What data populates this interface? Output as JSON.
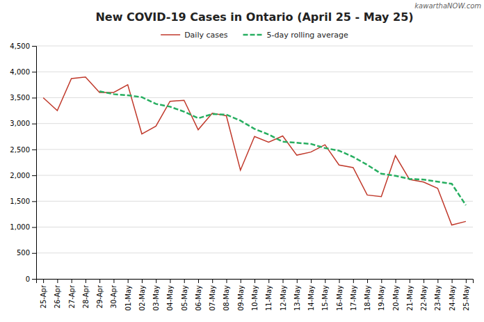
{
  "chart_data": {
    "type": "line",
    "title": "New COVID-19 Cases in Ontario (April 25 - May 25)",
    "annotations": [
      "kawarthaNOW.com"
    ],
    "categories": [
      "25-Apr",
      "26-Apr",
      "27-Apr",
      "28-Apr",
      "29-Apr",
      "30-Apr",
      "01-May",
      "02-May",
      "03-May",
      "04-May",
      "05-May",
      "06-May",
      "07-May",
      "08-May",
      "09-May",
      "10-May",
      "11-May",
      "12-May",
      "13-May",
      "14-May",
      "15-May",
      "16-May",
      "17-May",
      "18-May",
      "19-May",
      "20-May",
      "21-May",
      "22-May",
      "23-May",
      "24-May",
      "25-May"
    ],
    "series": [
      {
        "name": "Daily cases",
        "color": "#c0392b",
        "line_style": "solid",
        "values": [
          3500,
          3250,
          3870,
          3900,
          3600,
          3600,
          3750,
          2800,
          2950,
          3430,
          3450,
          2880,
          3200,
          3150,
          2100,
          2750,
          2640,
          2760,
          2390,
          2450,
          2590,
          2200,
          2150,
          1620,
          1590,
          2380,
          1920,
          1870,
          1750,
          1040,
          1110
        ]
      },
      {
        "name": "5-day rolling average",
        "color": "#27ae60",
        "line_style": "dashed",
        "values": [
          null,
          null,
          null,
          null,
          3624,
          3568,
          3546,
          3510,
          3380,
          3326,
          3230,
          3102,
          3183,
          3172,
          3057,
          2897,
          2789,
          2649,
          2628,
          2607,
          2527,
          2477,
          2357,
          2203,
          2031,
          1992,
          1932,
          1917,
          1877,
          1837,
          1424
        ]
      }
    ],
    "ylim": [
      0,
      4500
    ],
    "yticks": [
      0,
      500,
      {
        "value": 1000,
        "label": "1,000"
      },
      {
        "value": 1500,
        "label": "1,500"
      },
      {
        "value": 2000,
        "label": "2,000"
      },
      {
        "value": 2500,
        "label": "2,500"
      },
      {
        "value": 3000,
        "label": "3,000"
      },
      {
        "value": 3500,
        "label": "3,500"
      },
      {
        "value": 4000,
        "label": "4,000"
      },
      {
        "value": 4500,
        "label": "4,500"
      }
    ],
    "grid": true,
    "legend": "top"
  }
}
